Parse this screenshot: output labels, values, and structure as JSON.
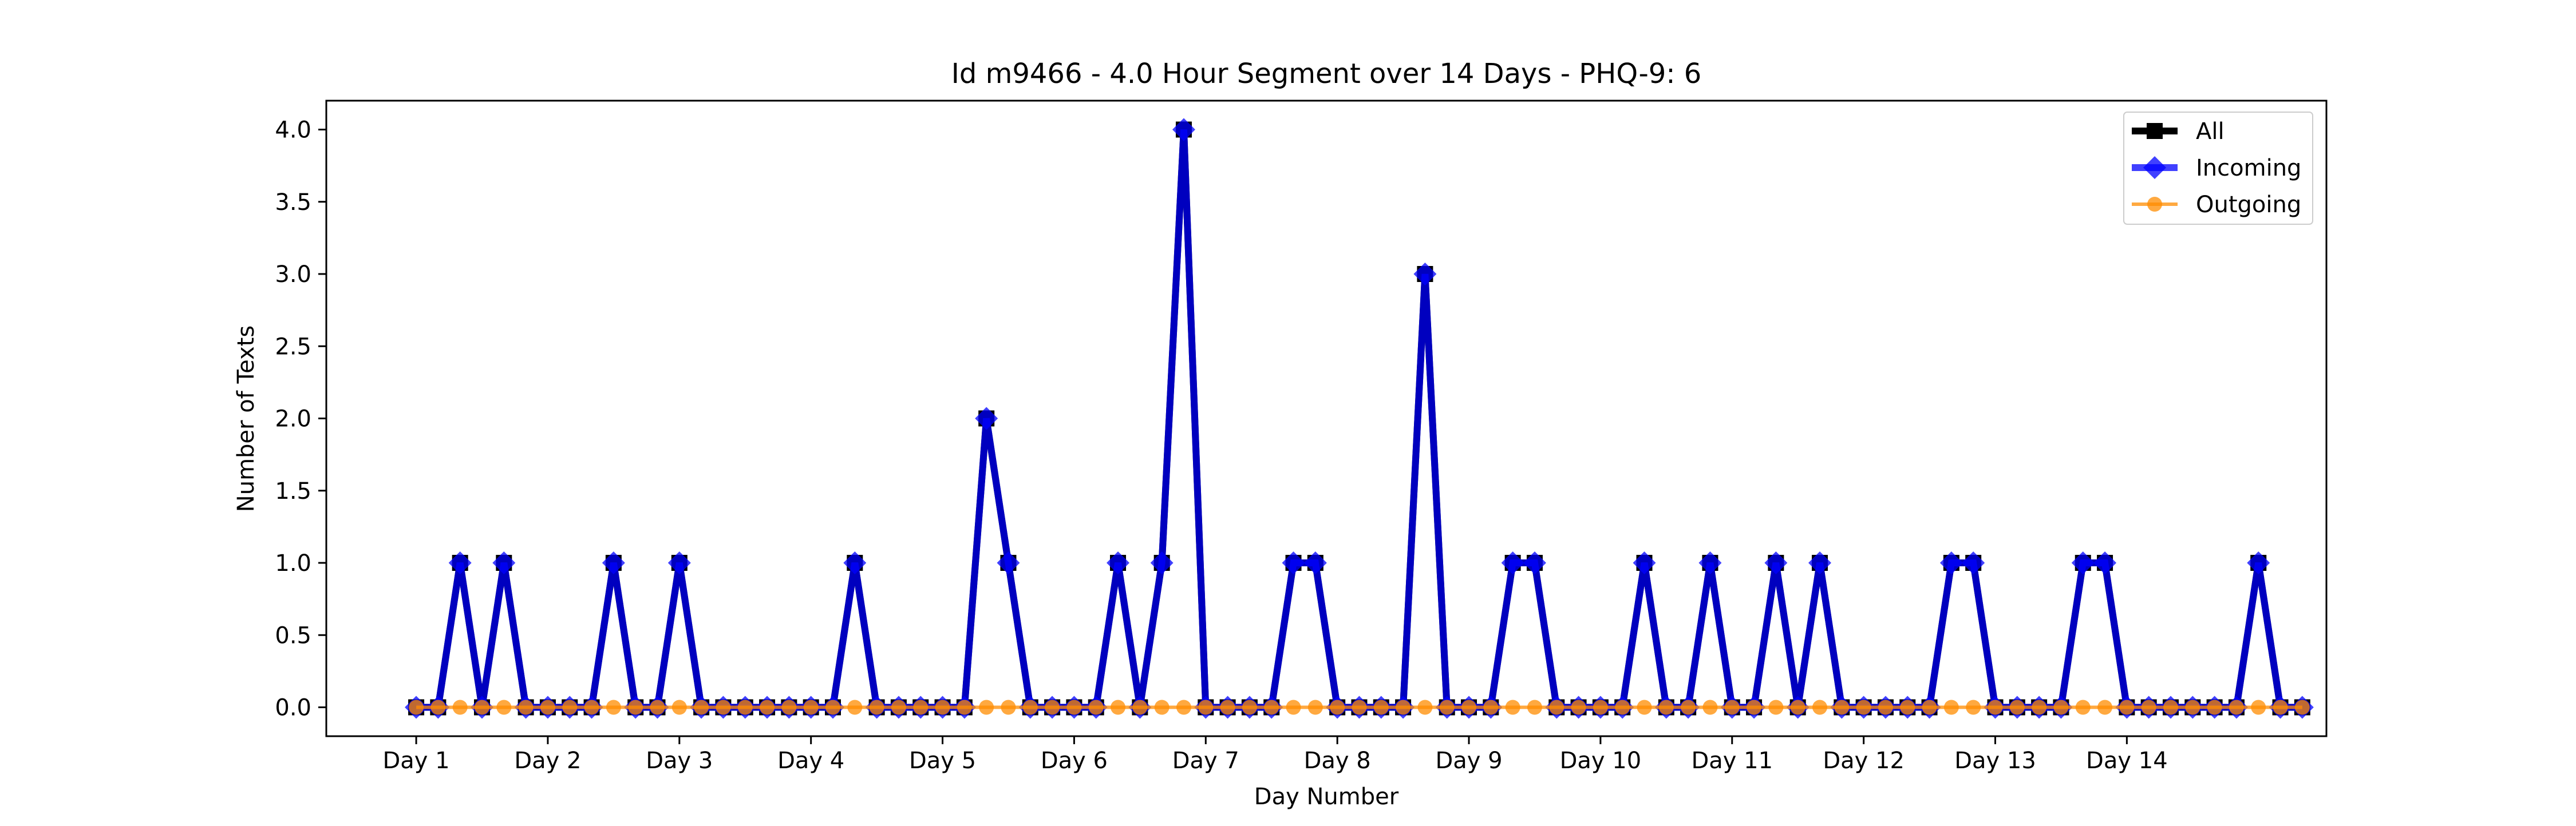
{
  "chart_data": {
    "type": "line",
    "title": "Id m9466 - 4.0 Hour Segment over 14 Days - PHQ-9: 6",
    "xlabel": "Day Number",
    "ylabel": "Number of Texts",
    "ylim": [
      -0.2,
      4.2
    ],
    "xlim": [
      -4.1,
      87.1
    ],
    "yticks": [
      0.0,
      0.5,
      1.0,
      1.5,
      2.0,
      2.5,
      3.0,
      3.5,
      4.0
    ],
    "ytick_labels": [
      "0.0",
      "0.5",
      "1.0",
      "1.5",
      "2.0",
      "2.5",
      "3.0",
      "3.5",
      "4.0"
    ],
    "xticks": [
      0,
      6,
      12,
      18,
      24,
      30,
      36,
      42,
      48,
      54,
      60,
      66,
      72,
      78
    ],
    "xtick_labels": [
      "Day 1",
      "Day 2",
      "Day 3",
      "Day 4",
      "Day 5",
      "Day 6",
      "Day 7",
      "Day 8",
      "Day 9",
      "Day 10",
      "Day 11",
      "Day 12",
      "Day 13",
      "Day 14"
    ],
    "grid": false,
    "legend_position": "top-right",
    "series": [
      {
        "name": "All",
        "color": "#000000",
        "marker": "square",
        "values": [
          0,
          0,
          1,
          0,
          1,
          0,
          0,
          0,
          0,
          1,
          0,
          0,
          1,
          0,
          0,
          0,
          0,
          0,
          0,
          0,
          1,
          0,
          0,
          0,
          0,
          0,
          2,
          1,
          0,
          0,
          0,
          0,
          1,
          0,
          1,
          4,
          0,
          0,
          0,
          0,
          1,
          1,
          0,
          0,
          0,
          0,
          3,
          0,
          0,
          0,
          1,
          1,
          0,
          0,
          0,
          0,
          1,
          0,
          0,
          1,
          0,
          0,
          1,
          0,
          1,
          0,
          0,
          0,
          0,
          0,
          1,
          1,
          0,
          0,
          0,
          0,
          1,
          1,
          0,
          0,
          0,
          0,
          0,
          0,
          1,
          0,
          0
        ]
      },
      {
        "name": "Incoming",
        "color": "#0000ff",
        "marker": "diamond",
        "values": [
          0,
          0,
          1,
          0,
          1,
          0,
          0,
          0,
          0,
          1,
          0,
          0,
          1,
          0,
          0,
          0,
          0,
          0,
          0,
          0,
          1,
          0,
          0,
          0,
          0,
          0,
          2,
          1,
          0,
          0,
          0,
          0,
          1,
          0,
          1,
          4,
          0,
          0,
          0,
          0,
          1,
          1,
          0,
          0,
          0,
          0,
          3,
          0,
          0,
          0,
          1,
          1,
          0,
          0,
          0,
          0,
          1,
          0,
          0,
          1,
          0,
          0,
          1,
          0,
          1,
          0,
          0,
          0,
          0,
          0,
          1,
          1,
          0,
          0,
          0,
          0,
          1,
          1,
          0,
          0,
          0,
          0,
          0,
          0,
          1,
          0,
          0
        ]
      },
      {
        "name": "Outgoing",
        "color": "#ff8c00",
        "marker": "circle",
        "values": [
          0,
          0,
          0,
          0,
          0,
          0,
          0,
          0,
          0,
          0,
          0,
          0,
          0,
          0,
          0,
          0,
          0,
          0,
          0,
          0,
          0,
          0,
          0,
          0,
          0,
          0,
          0,
          0,
          0,
          0,
          0,
          0,
          0,
          0,
          0,
          0,
          0,
          0,
          0,
          0,
          0,
          0,
          0,
          0,
          0,
          0,
          0,
          0,
          0,
          0,
          0,
          0,
          0,
          0,
          0,
          0,
          0,
          0,
          0,
          0,
          0,
          0,
          0,
          0,
          0,
          0,
          0,
          0,
          0,
          0,
          0,
          0,
          0,
          0,
          0,
          0,
          0,
          0,
          0,
          0,
          0,
          0,
          0,
          0,
          0,
          0,
          0
        ]
      }
    ]
  }
}
